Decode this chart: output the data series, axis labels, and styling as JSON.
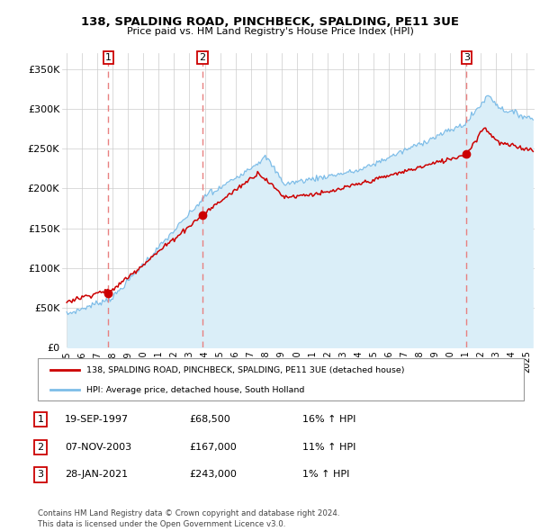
{
  "title": "138, SPALDING ROAD, PINCHBECK, SPALDING, PE11 3UE",
  "subtitle": "Price paid vs. HM Land Registry's House Price Index (HPI)",
  "ylim": [
    0,
    370000
  ],
  "yticks": [
    0,
    50000,
    100000,
    150000,
    200000,
    250000,
    300000,
    350000
  ],
  "ytick_labels": [
    "£0",
    "£50K",
    "£100K",
    "£150K",
    "£200K",
    "£250K",
    "£300K",
    "£350K"
  ],
  "hpi_color": "#7dbde8",
  "hpi_fill_color": "#daeef8",
  "price_color": "#cc0000",
  "marker_color": "#cc0000",
  "vline_color": "#e88080",
  "grid_color": "#cccccc",
  "sale_dates": [
    1997.72,
    2003.85,
    2021.07
  ],
  "sale_prices": [
    68500,
    167000,
    243000
  ],
  "sale_labels": [
    "1",
    "2",
    "3"
  ],
  "xmin": 1994.7,
  "xmax": 2025.5,
  "legend_price_label": "138, SPALDING ROAD, PINCHBECK, SPALDING, PE11 3UE (detached house)",
  "legend_hpi_label": "HPI: Average price, detached house, South Holland",
  "table_rows": [
    {
      "num": "1",
      "date": "19-SEP-1997",
      "price": "£68,500",
      "hpi": "16% ↑ HPI"
    },
    {
      "num": "2",
      "date": "07-NOV-2003",
      "price": "£167,000",
      "hpi": "11% ↑ HPI"
    },
    {
      "num": "3",
      "date": "28-JAN-2021",
      "price": "£243,000",
      "hpi": "1% ↑ HPI"
    }
  ],
  "footer": "Contains HM Land Registry data © Crown copyright and database right 2024.\nThis data is licensed under the Open Government Licence v3.0."
}
